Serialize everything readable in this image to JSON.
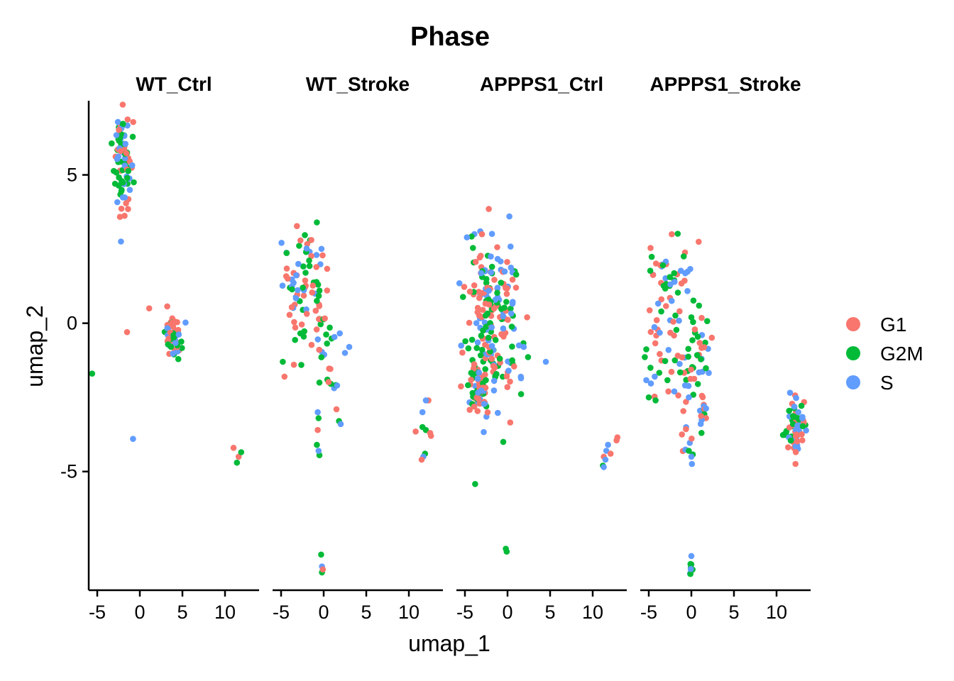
{
  "chart_data": {
    "type": "scatter",
    "title": "Phase",
    "xlabel": "umap_1",
    "ylabel": "umap_2",
    "xlim": [
      -6,
      14
    ],
    "ylim": [
      -9,
      7.5
    ],
    "x_ticks": [
      -5,
      0,
      5,
      10
    ],
    "y_ticks": [
      5,
      0,
      -5
    ],
    "x_tick_labels": [
      "-5",
      "0",
      "5",
      "10"
    ],
    "y_tick_labels": [
      "5",
      "0",
      "-5"
    ],
    "grid": false,
    "legend_position": "right",
    "series": [
      {
        "name": "G1",
        "color": "#F8766D"
      },
      {
        "name": "G2M",
        "color": "#00BA38"
      },
      {
        "name": "S",
        "color": "#619CFF"
      }
    ],
    "facets": [
      {
        "name": "WT_Ctrl",
        "clusters": [
          {
            "cx": -2.0,
            "cy": 5.6,
            "sx": 0.6,
            "sy": 0.7,
            "n": 75
          },
          {
            "cx": -2.3,
            "cy": 3.8,
            "sx": 0.35,
            "sy": 0.5,
            "n": 12
          },
          {
            "cx": 3.9,
            "cy": -0.4,
            "sx": 0.45,
            "sy": 0.45,
            "n": 55
          }
        ],
        "points": [
          {
            "x": 1.1,
            "y": 0.5,
            "p": "G1"
          },
          {
            "x": -1.5,
            "y": -0.3,
            "p": "G1"
          },
          {
            "x": -5.6,
            "y": -1.7,
            "p": "G2M"
          },
          {
            "x": -0.8,
            "y": -3.9,
            "p": "S"
          },
          {
            "x": 11.0,
            "y": -4.2,
            "p": "G1"
          },
          {
            "x": 11.6,
            "y": -4.5,
            "p": "G1"
          },
          {
            "x": 11.4,
            "y": -4.7,
            "p": "G2M"
          },
          {
            "x": 11.9,
            "y": -4.35,
            "p": "G2M"
          }
        ]
      },
      {
        "name": "WT_Stroke",
        "clusters": [
          {
            "cx": -2.2,
            "cy": 1.2,
            "sx": 1.5,
            "sy": 1.0,
            "n": 80
          },
          {
            "cx": -0.4,
            "cy": -0.6,
            "sx": 0.9,
            "sy": 0.8,
            "n": 15
          },
          {
            "cx": 1.0,
            "cy": -2.0,
            "sx": 0.6,
            "sy": 0.4,
            "n": 8
          }
        ],
        "points": [
          {
            "x": -0.8,
            "y": 3.4,
            "p": "G2M"
          },
          {
            "x": -4.6,
            "y": -1.8,
            "p": "G1"
          },
          {
            "x": -3.5,
            "y": -1.4,
            "p": "G1"
          },
          {
            "x": -4.8,
            "y": -1.3,
            "p": "G2M"
          },
          {
            "x": 3.0,
            "y": -0.8,
            "p": "S"
          },
          {
            "x": 2.5,
            "y": -1.0,
            "p": "S"
          },
          {
            "x": -0.5,
            "y": -2.0,
            "p": "G2M"
          },
          {
            "x": 1.5,
            "y": -2.9,
            "p": "G1"
          },
          {
            "x": 1.8,
            "y": -3.3,
            "p": "G2M"
          },
          {
            "x": 2.0,
            "y": -3.4,
            "p": "S"
          },
          {
            "x": -0.7,
            "y": -3.0,
            "p": "S"
          },
          {
            "x": -0.6,
            "y": -3.2,
            "p": "G2M"
          },
          {
            "x": -0.7,
            "y": -3.6,
            "p": "G1"
          },
          {
            "x": -0.8,
            "y": -4.1,
            "p": "G2M"
          },
          {
            "x": -0.5,
            "y": -4.45,
            "p": "G2M"
          },
          {
            "x": -0.6,
            "y": -4.3,
            "p": "S"
          },
          {
            "x": -0.3,
            "y": -7.8,
            "p": "G2M"
          },
          {
            "x": -0.2,
            "y": -8.2,
            "p": "S"
          },
          {
            "x": -0.2,
            "y": -8.4,
            "p": "G2M"
          },
          {
            "x": -0.1,
            "y": -8.3,
            "p": "G1"
          },
          {
            "x": 10.8,
            "y": -3.65,
            "p": "G1"
          },
          {
            "x": 11.6,
            "y": -3.0,
            "p": "S"
          },
          {
            "x": 12.3,
            "y": -2.6,
            "p": "G1"
          },
          {
            "x": 12.0,
            "y": -2.6,
            "p": "S"
          },
          {
            "x": 11.6,
            "y": -3.5,
            "p": "G2M"
          },
          {
            "x": 12.0,
            "y": -3.6,
            "p": "G2M"
          },
          {
            "x": 12.5,
            "y": -3.7,
            "p": "G1"
          },
          {
            "x": 12.6,
            "y": -3.8,
            "p": "G1"
          },
          {
            "x": 11.9,
            "y": -4.4,
            "p": "G2M"
          },
          {
            "x": 11.7,
            "y": -4.5,
            "p": "S"
          },
          {
            "x": 11.5,
            "y": -4.6,
            "p": "G1"
          }
        ]
      },
      {
        "name": "APPPS1_Ctrl",
        "clusters": [
          {
            "cx": -2.0,
            "cy": 0.2,
            "sx": 1.5,
            "sy": 1.5,
            "n": 200
          },
          {
            "cx": -3.5,
            "cy": -2.2,
            "sx": 0.6,
            "sy": 0.4,
            "n": 50
          },
          {
            "cx": 0.8,
            "cy": -1.6,
            "sx": 0.5,
            "sy": 0.4,
            "n": 12
          }
        ],
        "points": [
          {
            "x": -2.2,
            "y": 3.85,
            "p": "G1"
          },
          {
            "x": -3.0,
            "y": 3.0,
            "p": "G1"
          },
          {
            "x": 1.0,
            "y": 1.2,
            "p": "G1"
          },
          {
            "x": 2.3,
            "y": 0.2,
            "p": "G1"
          },
          {
            "x": 1.9,
            "y": -0.8,
            "p": "S"
          },
          {
            "x": 4.5,
            "y": -1.3,
            "p": "S"
          },
          {
            "x": -0.5,
            "y": -4.0,
            "p": "G2M"
          },
          {
            "x": -0.2,
            "y": -7.6,
            "p": "G2M"
          },
          {
            "x": -0.1,
            "y": -7.7,
            "p": "G2M"
          },
          {
            "x": 11.8,
            "y": -4.1,
            "p": "S"
          },
          {
            "x": 11.6,
            "y": -4.3,
            "p": "S"
          },
          {
            "x": 12.9,
            "y": -3.85,
            "p": "G1"
          },
          {
            "x": 12.8,
            "y": -3.95,
            "p": "G1"
          },
          {
            "x": 12.1,
            "y": -4.4,
            "p": "G1"
          },
          {
            "x": 11.3,
            "y": -4.5,
            "p": "G1"
          },
          {
            "x": 11.5,
            "y": -4.6,
            "p": "S"
          },
          {
            "x": 11.2,
            "y": -4.8,
            "p": "G2M"
          },
          {
            "x": 11.3,
            "y": -4.85,
            "p": "S"
          }
        ]
      },
      {
        "name": "APPPS1_Stroke",
        "clusters": [
          {
            "cx": -2.3,
            "cy": 1.2,
            "sx": 1.4,
            "sy": 0.9,
            "n": 55
          },
          {
            "cx": -2.0,
            "cy": -1.3,
            "sx": 1.8,
            "sy": 0.6,
            "n": 40
          },
          {
            "cx": 1.0,
            "cy": -1.0,
            "sx": 0.6,
            "sy": 0.9,
            "n": 25
          },
          {
            "cx": 1.6,
            "cy": -3.0,
            "sx": 0.3,
            "sy": 0.4,
            "n": 12
          },
          {
            "cx": -0.5,
            "cy": -3.8,
            "sx": 0.35,
            "sy": 0.6,
            "n": 12
          },
          {
            "cx": 12.3,
            "cy": -3.5,
            "sx": 0.55,
            "sy": 0.45,
            "n": 75
          },
          {
            "cx": 0.0,
            "cy": -8.2,
            "sx": 0.08,
            "sy": 0.15,
            "n": 10
          }
        ],
        "points": [
          {
            "x": -2.3,
            "y": 3.0,
            "p": "G1"
          },
          {
            "x": -4.8,
            "y": -1.5,
            "p": "G2M"
          },
          {
            "x": -4.3,
            "y": -1.8,
            "p": "S"
          },
          {
            "x": -5.0,
            "y": -2.5,
            "p": "G2M"
          },
          {
            "x": -4.2,
            "y": -2.6,
            "p": "G2M"
          },
          {
            "x": -2.7,
            "y": -2.3,
            "p": "G1"
          },
          {
            "x": -2.0,
            "y": -2.3,
            "p": "S"
          },
          {
            "x": -0.3,
            "y": -2.5,
            "p": "S"
          },
          {
            "x": 0.0,
            "y": 0.2,
            "p": "G2M"
          },
          {
            "x": -0.3,
            "y": -4.3,
            "p": "G2M"
          },
          {
            "x": 0.0,
            "y": -4.5,
            "p": "S"
          }
        ]
      }
    ]
  }
}
